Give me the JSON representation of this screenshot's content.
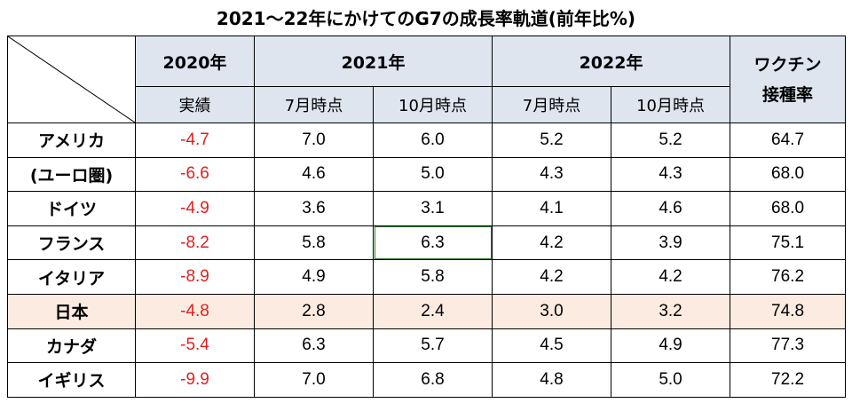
{
  "title": "2021～22年にかけてのG7の成長率軌道(前年比%)",
  "chart_data": {
    "type": "table",
    "title": "2021～22年にかけてのG7の成長率軌道(前年比%)",
    "header": {
      "y2020": "2020年",
      "y2021": "2021年",
      "y2022": "2022年",
      "vaccine_line1": "ワクチン",
      "vaccine_line2": "接種率",
      "actual": "実績",
      "jul": "7月時点",
      "oct": "10月時点",
      "jul2": "7月時点",
      "oct2": "10月時点"
    },
    "rows": [
      {
        "country": "アメリカ",
        "actual2020": "-4.7",
        "jul2021": "7.0",
        "oct2021": "6.0",
        "jul2022": "5.2",
        "oct2022": "5.2",
        "vaccine": "64.7"
      },
      {
        "country": "(ユーロ圏)",
        "actual2020": "-6.6",
        "jul2021": "4.6",
        "oct2021": "5.0",
        "jul2022": "4.3",
        "oct2022": "4.3",
        "vaccine": "68.0"
      },
      {
        "country": "ドイツ",
        "actual2020": "-4.9",
        "jul2021": "3.6",
        "oct2021": "3.1",
        "jul2022": "4.1",
        "oct2022": "4.6",
        "vaccine": "68.0"
      },
      {
        "country": "フランス",
        "actual2020": "-8.2",
        "jul2021": "5.8",
        "oct2021": "6.3",
        "jul2022": "4.2",
        "oct2022": "3.9",
        "vaccine": "75.1"
      },
      {
        "country": "イタリア",
        "actual2020": "-8.9",
        "jul2021": "4.9",
        "oct2021": "5.8",
        "jul2022": "4.2",
        "oct2022": "4.2",
        "vaccine": "76.2"
      },
      {
        "country": "日本",
        "actual2020": "-4.8",
        "jul2021": "2.8",
        "oct2021": "2.4",
        "jul2022": "3.0",
        "oct2022": "3.2",
        "vaccine": "74.8"
      },
      {
        "country": "カナダ",
        "actual2020": "-5.4",
        "jul2021": "6.3",
        "oct2021": "5.7",
        "jul2022": "4.5",
        "oct2022": "4.9",
        "vaccine": "77.3"
      },
      {
        "country": "イギリス",
        "actual2020": "-9.9",
        "jul2021": "7.0",
        "oct2021": "6.8",
        "jul2022": "4.8",
        "oct2022": "5.0",
        "vaccine": "72.2"
      }
    ],
    "colors": {
      "header_bg": "#dfe5ef",
      "negative": "#e02020",
      "japan_highlight": "#fcebe0",
      "selected_cell_border": "#2e7d32"
    }
  }
}
